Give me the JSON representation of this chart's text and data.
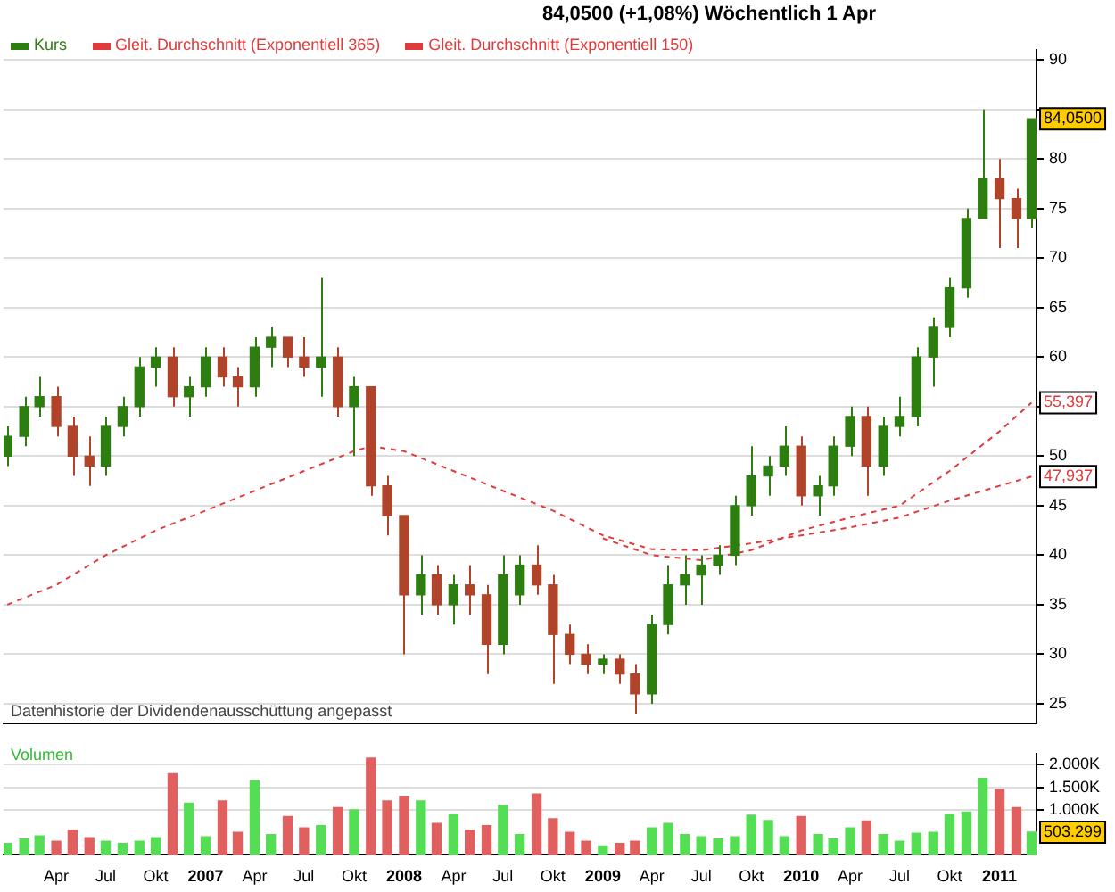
{
  "chart_data": [
    {
      "type": "candlestick",
      "title": "84,0500 (+1,08%)   Wöchentlich 1 Apr",
      "legend": "top left",
      "grid": "y",
      "tick_labels": "y",
      "xlim": [
        "2005-12-25",
        "2011-03-10"
      ],
      "ylim": [
        23,
        91
      ],
      "yticks": [
        25,
        30,
        35,
        40,
        45,
        50,
        {
          "value": 55,
          "label": null
        },
        60,
        65,
        70,
        75,
        80,
        {
          "value": 85,
          "label": null
        },
        90
      ],
      "x": [
        "2006-01",
        "2006-02",
        "2006-03",
        "2006-04",
        "2006-05",
        "2006-06",
        "2006-07",
        "2006-08",
        "2006-09",
        "2006-10",
        "2006-11",
        "2006-12",
        "2007-01",
        "2007-02",
        "2007-03",
        "2007-04",
        "2007-05",
        "2007-06",
        "2007-07",
        "2007-08",
        "2007-09",
        "2007-10",
        "2007-11",
        "2007-12",
        "2008-01",
        "2008-02",
        "2008-03",
        "2008-04",
        "2008-05",
        "2008-06",
        "2008-07",
        "2008-08",
        "2008-09",
        "2008-10",
        "2008-11",
        "2008-12",
        "2009-01",
        "2009-02",
        "2009-03",
        "2009-04",
        "2009-05",
        "2009-06",
        "2009-07",
        "2009-08",
        "2009-09",
        "2009-10",
        "2009-11",
        "2009-12",
        "2010-01",
        "2010-02",
        "2010-03",
        "2010-04",
        "2010-05",
        "2010-06",
        "2010-07",
        "2010-08",
        "2010-09",
        "2010-10",
        "2010-11",
        "2010-12",
        "2011-01",
        "2011-02",
        "2011-03"
      ],
      "series": [
        {
          "name": "Kurs",
          "type": "candlestick",
          "color": "#2e7d10",
          "colors": [
            "#2e7d10",
            "#2e7d10",
            "#2e7d10",
            "#b0442a",
            "#b0442a",
            "#b0442a",
            "#2e7d10",
            "#2e7d10",
            "#2e7d10",
            "#2e7d10",
            "#b0442a",
            "#2e7d10",
            "#2e7d10",
            "#b0442a",
            "#b0442a",
            "#2e7d10",
            "#2e7d10",
            "#b0442a",
            "#b0442a",
            "#2e7d10",
            "#b0442a",
            "#2e7d10",
            "#b0442a",
            "#b0442a",
            "#b0442a",
            "#2e7d10",
            "#b0442a",
            "#2e7d10",
            "#b0442a",
            "#b0442a",
            "#2e7d10",
            "#2e7d10",
            "#b0442a",
            "#b0442a",
            "#b0442a",
            "#b0442a",
            "#2e7d10",
            "#b0442a",
            "#b0442a",
            "#2e7d10",
            "#2e7d10",
            "#2e7d10",
            "#2e7d10",
            "#2e7d10",
            "#2e7d10",
            "#2e7d10",
            "#2e7d10",
            "#2e7d10",
            "#b0442a",
            "#2e7d10",
            "#2e7d10",
            "#2e7d10",
            "#b0442a",
            "#2e7d10",
            "#2e7d10",
            "#2e7d10",
            "#2e7d10",
            "#2e7d10",
            "#2e7d10",
            "#2e7d10",
            "#b0442a",
            "#b0442a",
            "#2e7d10"
          ],
          "ohlc": [
            [
              50,
              53,
              49,
              52
            ],
            [
              52,
              56,
              51,
              55
            ],
            [
              55,
              58,
              54,
              56
            ],
            [
              56,
              57,
              52,
              53
            ],
            [
              53,
              54,
              48,
              50
            ],
            [
              50,
              52,
              47,
              49
            ],
            [
              49,
              54,
              48,
              53
            ],
            [
              53,
              56,
              52,
              55
            ],
            [
              55,
              60,
              54,
              59
            ],
            [
              59,
              61,
              57,
              60
            ],
            [
              60,
              61,
              55,
              56
            ],
            [
              56,
              58,
              54,
              57
            ],
            [
              57,
              61,
              56,
              60
            ],
            [
              60,
              61,
              57,
              58
            ],
            [
              58,
              59,
              55,
              57
            ],
            [
              57,
              62,
              56,
              61
            ],
            [
              61,
              63,
              59,
              62
            ],
            [
              62,
              62,
              59,
              60
            ],
            [
              60,
              62,
              58,
              59
            ],
            [
              59,
              68,
              56,
              60
            ],
            [
              60,
              61,
              54,
              55
            ],
            [
              55,
              58,
              50,
              57
            ],
            [
              57,
              57,
              46,
              47
            ],
            [
              47,
              48,
              42,
              44
            ],
            [
              44,
              44,
              30,
              36
            ],
            [
              36,
              40,
              34,
              38
            ],
            [
              38,
              39,
              34,
              35
            ],
            [
              35,
              38,
              33,
              37
            ],
            [
              37,
              39,
              34,
              36
            ],
            [
              36,
              37,
              28,
              31
            ],
            [
              31,
              40,
              30,
              38
            ],
            [
              36,
              40,
              35,
              39
            ],
            [
              39,
              41,
              36,
              37
            ],
            [
              37,
              38,
              27,
              32
            ],
            [
              32,
              33,
              29,
              30
            ],
            [
              30,
              31,
              28,
              29
            ],
            [
              29,
              30,
              28,
              29.5
            ],
            [
              29.5,
              30,
              27,
              28
            ],
            [
              28,
              29,
              24,
              26
            ],
            [
              26,
              34,
              25,
              33
            ],
            [
              33,
              39,
              32,
              37
            ],
            [
              37,
              40,
              35,
              38
            ],
            [
              38,
              40,
              35,
              39
            ],
            [
              39,
              41,
              38,
              40
            ],
            [
              40,
              46,
              39,
              45
            ],
            [
              45,
              51,
              44,
              48
            ],
            [
              48,
              50,
              46,
              49
            ],
            [
              49,
              53,
              48,
              51
            ],
            [
              51,
              52,
              45,
              46
            ],
            [
              46,
              48,
              44,
              47
            ],
            [
              47,
              52,
              46,
              51
            ],
            [
              51,
              55,
              50,
              54
            ],
            [
              54,
              55,
              46,
              49
            ],
            [
              49,
              54,
              48,
              53
            ],
            [
              53,
              56,
              52,
              54
            ],
            [
              54,
              61,
              53,
              60
            ],
            [
              60,
              64,
              57,
              63
            ],
            [
              63,
              68,
              62,
              67
            ],
            [
              67,
              75,
              66,
              74
            ],
            [
              74,
              85,
              74,
              78
            ],
            [
              78,
              80,
              71,
              76
            ],
            [
              76,
              77,
              71,
              74
            ],
            [
              74,
              84.05,
              73,
              84.05
            ]
          ]
        },
        {
          "name": "Gleit. Durchschnitt (Exponentiell 365)",
          "type": "line",
          "color": "#e03a3a",
          "line_style": "dashed",
          "x": [
            "2006-01",
            "2006-04",
            "2006-07",
            "2006-10",
            "2007-01",
            "2007-04",
            "2007-07",
            "2007-10",
            "2007-11",
            "2008-01",
            "2008-04",
            "2008-07",
            "2008-10",
            "2009-01",
            "2009-04",
            "2009-07",
            "2009-10",
            "2010-01",
            "2010-04",
            "2010-07",
            "2010-10",
            "2011-01",
            "2011-03"
          ],
          "values": [
            35,
            37,
            40,
            42.5,
            44.5,
            46.5,
            48.5,
            50.5,
            51,
            50.5,
            48.5,
            46.5,
            44.5,
            42,
            40.6,
            40.5,
            41.2,
            42,
            42.8,
            43.8,
            45.5,
            47,
            47.937
          ]
        },
        {
          "name": "Gleit. Durchschnitt (Exponentiell 150)",
          "type": "line",
          "color": "#e03a3a",
          "line_style": "dashed",
          "x": [
            "2009-01",
            "2009-04",
            "2009-07",
            "2009-10",
            "2010-01",
            "2010-04",
            "2010-07",
            "2010-10",
            "2011-01",
            "2011-03"
          ],
          "values": [
            41.7,
            40,
            39.5,
            40.5,
            42.5,
            43.8,
            45,
            48.5,
            52.5,
            55.397
          ]
        }
      ],
      "annotations": [
        "Datenhistorie der Dividendenausschüttung angepasst",
        {
          "text": "84,0500",
          "x": "2011-03",
          "y": 84.05
        },
        {
          "text": "55,397",
          "x": "2011-03",
          "y": 55.397
        },
        {
          "text": "47,937",
          "x": "2011-03",
          "y": 47.937
        }
      ]
    },
    {
      "type": "bar",
      "title": "Volumen",
      "grid": "y",
      "xlim": [
        "2005-12-25",
        "2011-03-10"
      ],
      "ylim": [
        0,
        2250
      ],
      "yticks": [
        {
          "value": 1000,
          "label": "1.000K"
        },
        {
          "value": 1500,
          "label": "1.500K"
        },
        {
          "value": 2000,
          "label": "2.000K"
        }
      ],
      "xticks": [
        {
          "value": "2006-04",
          "label": "Apr"
        },
        {
          "value": "2006-07",
          "label": "Jul"
        },
        {
          "value": "2006-10",
          "label": "Okt"
        },
        {
          "value": "2007-01",
          "label": "2007"
        },
        {
          "value": "2007-04",
          "label": "Apr"
        },
        {
          "value": "2007-07",
          "label": "Jul"
        },
        {
          "value": "2007-10",
          "label": "Okt"
        },
        {
          "value": "2008-01",
          "label": "2008"
        },
        {
          "value": "2008-04",
          "label": "Apr"
        },
        {
          "value": "2008-07",
          "label": "Jul"
        },
        {
          "value": "2008-10",
          "label": "Okt"
        },
        {
          "value": "2009-01",
          "label": "2009"
        },
        {
          "value": "2009-04",
          "label": "Apr"
        },
        {
          "value": "2009-07",
          "label": "Jul"
        },
        {
          "value": "2009-10",
          "label": "Okt"
        },
        {
          "value": "2010-01",
          "label": "2010"
        },
        {
          "value": "2010-04",
          "label": "Apr"
        },
        {
          "value": "2010-07",
          "label": "Jul"
        },
        {
          "value": "2010-10",
          "label": "Okt"
        },
        {
          "value": "2011-01",
          "label": "2011"
        }
      ],
      "x": [
        "2006-01",
        "2006-02",
        "2006-03",
        "2006-04",
        "2006-05",
        "2006-06",
        "2006-07",
        "2006-08",
        "2006-09",
        "2006-10",
        "2006-11",
        "2006-12",
        "2007-01",
        "2007-02",
        "2007-03",
        "2007-04",
        "2007-05",
        "2007-06",
        "2007-07",
        "2007-08",
        "2007-09",
        "2007-10",
        "2007-11",
        "2007-12",
        "2008-01",
        "2008-02",
        "2008-03",
        "2008-04",
        "2008-05",
        "2008-06",
        "2008-07",
        "2008-08",
        "2008-09",
        "2008-10",
        "2008-11",
        "2008-12",
        "2009-01",
        "2009-02",
        "2009-03",
        "2009-04",
        "2009-05",
        "2009-06",
        "2009-07",
        "2009-08",
        "2009-09",
        "2009-10",
        "2009-11",
        "2009-12",
        "2010-01",
        "2010-02",
        "2010-03",
        "2010-04",
        "2010-05",
        "2010-06",
        "2010-07",
        "2010-08",
        "2010-09",
        "2010-10",
        "2010-11",
        "2010-12",
        "2011-01",
        "2011-02",
        "2011-03"
      ],
      "values": [
        250,
        350,
        420,
        300,
        550,
        380,
        300,
        250,
        300,
        380,
        1800,
        1150,
        400,
        1200,
        500,
        1650,
        450,
        850,
        600,
        650,
        1050,
        1000,
        2150,
        1200,
        1300,
        1200,
        700,
        900,
        550,
        650,
        1100,
        450,
        1350,
        800,
        500,
        300,
        200,
        250,
        300,
        600,
        700,
        450,
        400,
        350,
        400,
        880,
        760,
        400,
        850,
        450,
        350,
        600,
        750,
        450,
        300,
        480,
        500,
        900,
        950,
        1700,
        1450,
        1050,
        503.299
      ],
      "colors": [
        "#55dd55",
        "#55dd55",
        "#55dd55",
        "#e06060",
        "#e06060",
        "#e06060",
        "#55dd55",
        "#55dd55",
        "#55dd55",
        "#55dd55",
        "#e06060",
        "#55dd55",
        "#55dd55",
        "#e06060",
        "#e06060",
        "#55dd55",
        "#55dd55",
        "#e06060",
        "#e06060",
        "#55dd55",
        "#e06060",
        "#55dd55",
        "#e06060",
        "#e06060",
        "#e06060",
        "#55dd55",
        "#e06060",
        "#55dd55",
        "#e06060",
        "#e06060",
        "#55dd55",
        "#55dd55",
        "#e06060",
        "#e06060",
        "#e06060",
        "#e06060",
        "#55dd55",
        "#e06060",
        "#e06060",
        "#55dd55",
        "#55dd55",
        "#55dd55",
        "#55dd55",
        "#55dd55",
        "#55dd55",
        "#55dd55",
        "#55dd55",
        "#55dd55",
        "#e06060",
        "#55dd55",
        "#55dd55",
        "#55dd55",
        "#e06060",
        "#55dd55",
        "#55dd55",
        "#55dd55",
        "#55dd55",
        "#55dd55",
        "#55dd55",
        "#55dd55",
        "#e06060",
        "#e06060",
        "#55dd55"
      ],
      "annotations": [
        {
          "text": "503.299",
          "x": "2011-03",
          "y": 503.299
        }
      ]
    }
  ]
}
